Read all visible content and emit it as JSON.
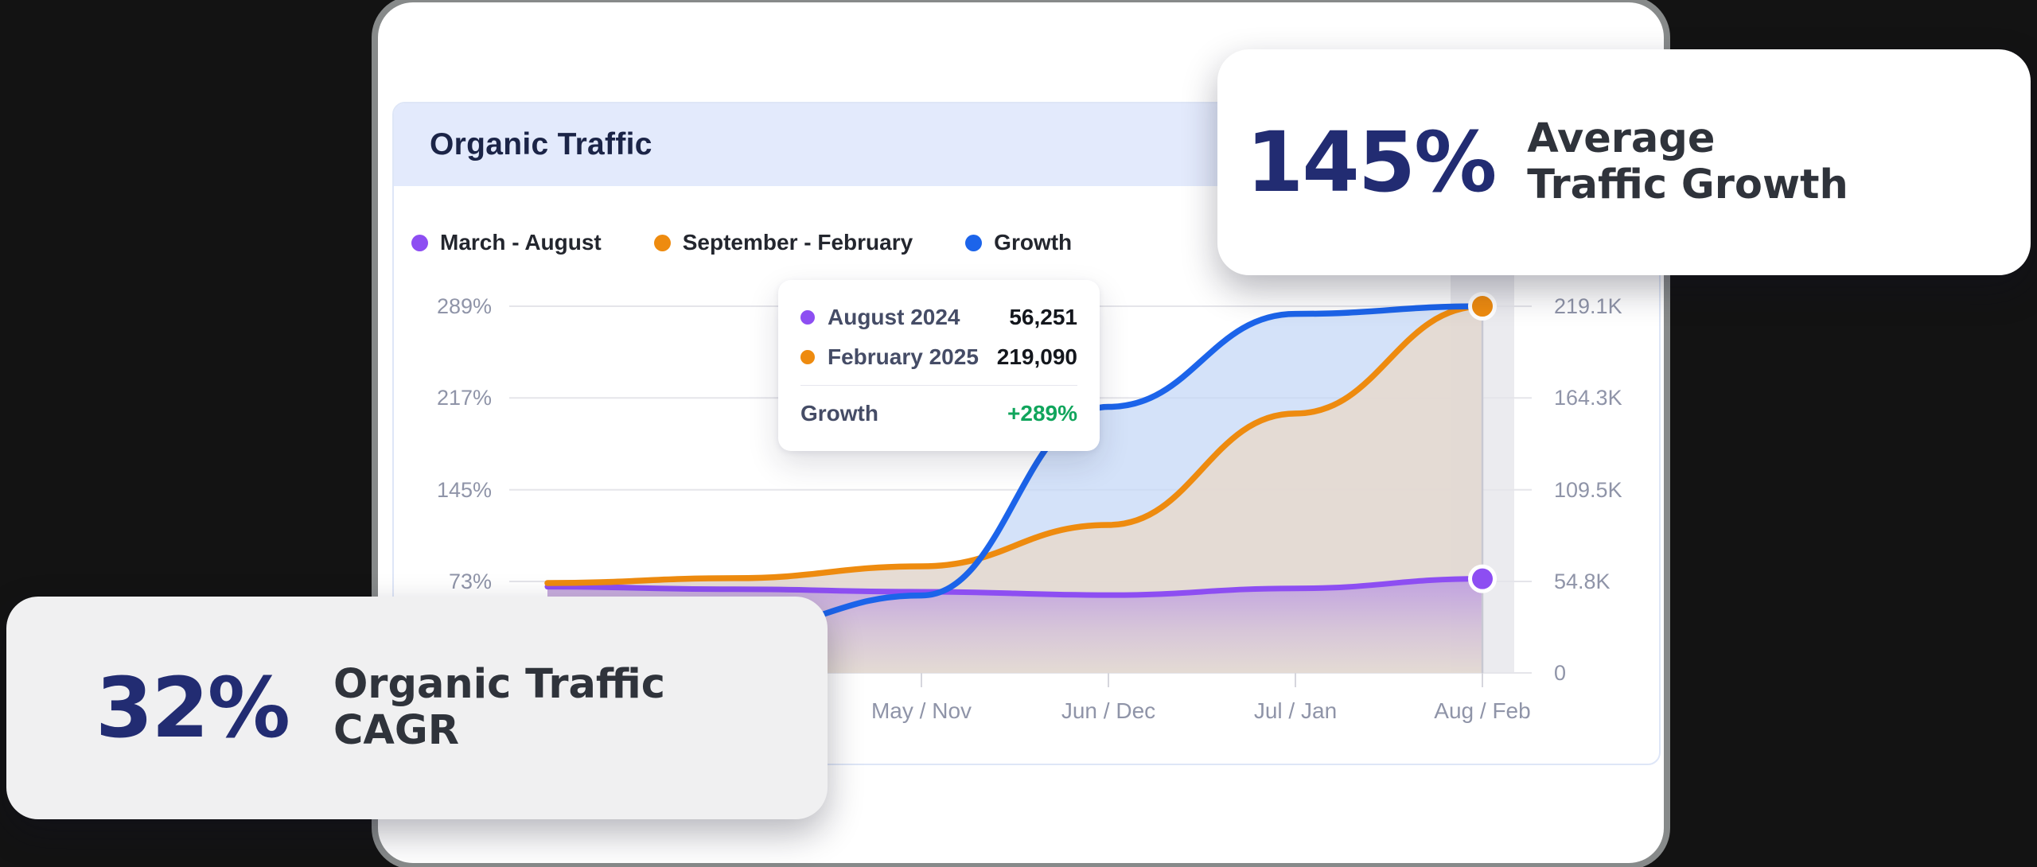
{
  "theme": {
    "background": "#131313",
    "card_bg": "#ffffff",
    "header_band_bg": "#e3eafc",
    "title_color": "#1b2447",
    "axis_text_color": "#8f94a8",
    "stat_color": "#222c72",
    "stat_label_color": "#2f333b",
    "growth_green": "#10a55c",
    "bottom_badge_bg": "#f0f0f1"
  },
  "panel": {
    "title": "Organic Traffic"
  },
  "chart_data": {
    "type": "area",
    "title": "Organic Traffic",
    "x_tick_labels": [
      "May / Nov",
      "Jun / Dec",
      "Jul / Jan",
      "Aug / Feb"
    ],
    "x_label_indices": [
      2,
      3,
      4,
      5
    ],
    "x_point_count": 6,
    "highlight_index": 5,
    "grid": "horizontal",
    "legend_position": "top",
    "left_axis": {
      "unit": "%",
      "ticks": [
        "289%",
        "217%",
        "145%",
        "73%"
      ],
      "min": 73,
      "max": 289
    },
    "right_axis": {
      "unit": "K",
      "ticks": [
        "219.1K",
        "164.3K",
        "109.5K",
        "54.8K",
        "0"
      ],
      "min": 0,
      "max": 219.1
    },
    "series": [
      {
        "name": "March - August",
        "color": "#8d4ef2",
        "axis": "right",
        "unit": "K visits",
        "values": [
          51.5,
          50.0,
          48.5,
          46.5,
          50.5,
          56.25
        ],
        "end_label": "56,251"
      },
      {
        "name": "September - February",
        "color": "#ee8b0f",
        "axis": "right",
        "unit": "K visits",
        "values": [
          53.7,
          56.6,
          63.7,
          88.4,
          155.0,
          219.09
        ],
        "end_label": "219,090"
      },
      {
        "name": "Growth",
        "color": "#1c64ea",
        "axis": "left",
        "unit": "%",
        "values": [
          58,
          35,
          62,
          210,
          283,
          289
        ],
        "end_label": "+289%"
      }
    ]
  },
  "tooltip": {
    "rows": [
      {
        "dot_color": "#8d4ef2",
        "label": "August 2024",
        "value": "56,251"
      },
      {
        "dot_color": "#ee8b0f",
        "label": "February 2025",
        "value": "219,090"
      }
    ],
    "growth_label": "Growth",
    "growth_value": "+289%"
  },
  "badges": {
    "top_right": {
      "stat": "145%",
      "label_line1": "Average",
      "label_line2": "Traffic Growth"
    },
    "bottom_left": {
      "stat": "32%",
      "label_line1": "Organic Traffic",
      "label_line2": "CAGR"
    }
  }
}
